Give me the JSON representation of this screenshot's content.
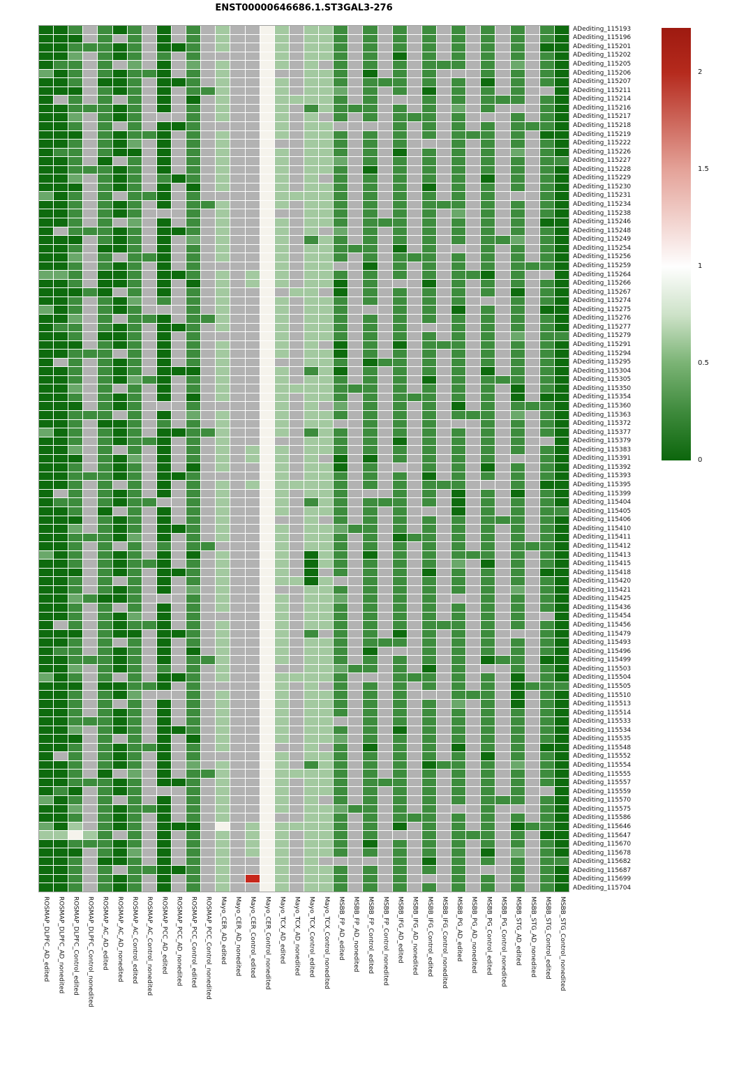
{
  "chart_data": {
    "type": "heatmap",
    "title": "ENST00000646686.1.ST3GAL3-276",
    "legend_position": "right",
    "rows": [
      "ADediting_115193",
      "ADediting_115196",
      "ADediting_115201",
      "ADediting_115202",
      "ADediting_115205",
      "ADediting_115206",
      "ADediting_115207",
      "ADediting_115211",
      "ADediting_115214",
      "ADediting_115216",
      "ADediting_115217",
      "ADediting_115218",
      "ADediting_115219",
      "ADediting_115222",
      "ADediting_115226",
      "ADediting_115227",
      "ADediting_115228",
      "ADediting_115229",
      "ADediting_115230",
      "ADediting_115231",
      "ADediting_115234",
      "ADediting_115238",
      "ADediting_115246",
      "ADediting_115248",
      "ADediting_115249",
      "ADediting_115254",
      "ADediting_115256",
      "ADediting_115259",
      "ADediting_115264",
      "ADediting_115266",
      "ADediting_115267",
      "ADediting_115274",
      "ADediting_115275",
      "ADediting_115276",
      "ADediting_115277",
      "ADediting_115279",
      "ADediting_115291",
      "ADediting_115294",
      "ADediting_115295",
      "ADediting_115304",
      "ADediting_115305",
      "ADediting_115350",
      "ADediting_115354",
      "ADediting_115360",
      "ADediting_115363",
      "ADediting_115372",
      "ADediting_115377",
      "ADediting_115379",
      "ADediting_115383",
      "ADediting_115391",
      "ADediting_115392",
      "ADediting_115393",
      "ADediting_115395",
      "ADediting_115399",
      "ADediting_115404",
      "ADediting_115405",
      "ADediting_115406",
      "ADediting_115410",
      "ADediting_115411",
      "ADediting_115412",
      "ADediting_115413",
      "ADediting_115415",
      "ADediting_115418",
      "ADediting_115420",
      "ADediting_115421",
      "ADediting_115425",
      "ADediting_115436",
      "ADediting_115454",
      "ADediting_115456",
      "ADediting_115479",
      "ADediting_115493",
      "ADediting_115496",
      "ADediting_115499",
      "ADediting_115503",
      "ADediting_115504",
      "ADediting_115505",
      "ADediting_115510",
      "ADediting_115513",
      "ADediting_115514",
      "ADediting_115533",
      "ADediting_115534",
      "ADediting_115535",
      "ADediting_115548",
      "ADediting_115552",
      "ADediting_115554",
      "ADediting_115555",
      "ADediting_115557",
      "ADediting_115559",
      "ADediting_115570",
      "ADediting_115575",
      "ADediting_115586",
      "ADediting_115646",
      "ADediting_115647",
      "ADediting_115670",
      "ADediting_115678",
      "ADediting_115682",
      "ADediting_115687",
      "ADediting_115699",
      "ADediting_115704"
    ],
    "columns": [
      "ROSMAP_DLPFC_AD_edited",
      "ROSMAP_DLPFC_AD_nonedited",
      "ROSMAP_DLPFC_Control_edited",
      "ROSMAP_DLPFC_Control_nonedited",
      "ROSMAP_AC_AD_edited",
      "ROSMAP_AC_AD_nonedited",
      "ROSMAP_AC_Control_edited",
      "ROSMAP_AC_Control_nonedited",
      "ROSMAP_PCC_AD_edited",
      "ROSMAP_PCC_AD_nonedited",
      "ROSMAP_PCC_Control_edited",
      "ROSMAP_PCC_Control_nonedited",
      "Mayo_CER_AD_edited",
      "Mayo_CER_AD_nonedited",
      "Mayo_CER_Control_edited",
      "Mayo_CER_Control_nonedited",
      "Mayo_TCX_AD_edited",
      "Mayo_TCX_AD_nonedited",
      "Mayo_TCX_Control_edited",
      "Mayo_TCX_Control_nonedited",
      "MSBB_FP_AD_edited",
      "MSBB_FP_AD_nonedited",
      "MSBB_FP_Control_edited",
      "MSBB_FP_Control_nonedited",
      "MSBB_IFG_AD_edited",
      "MSBB_IFG_AD_nonedited",
      "MSBB_IFG_Control_edited",
      "MSBB_IFG_Control_nonedited",
      "MSBB_PG_AD_edited",
      "MSBB_PG_AD_nonedited",
      "MSBB_PG_Control_edited",
      "MSBB_PG_Control_nonedited",
      "MSBB_STG_AD_edited",
      "MSBB_STG_AD_nonedited",
      "MSBB_STG_Control_edited",
      "MSBB_STG_Control_nonedited"
    ],
    "value_legend": {
      "d": 0.1,
      "g": 0.35,
      "m": 0.55,
      "l": 0.75,
      "w": 1.0,
      "r": 2.2,
      "n": "NA"
    },
    "colors": {
      "d": "#0e6b0e",
      "g": "#3d8c3d",
      "m": "#6aa86a",
      "l": "#a3c9a0",
      "w": "#f5f3ec",
      "r": "#c7271c",
      "n": "#b2b2b2"
    },
    "grid": {
      "column_base": [
        "d",
        "d",
        "g",
        "n",
        "g",
        "d",
        "g",
        "n",
        "d",
        "n",
        "g",
        "n",
        "l",
        "n",
        "n",
        "w",
        "l",
        "n",
        "l",
        "l",
        "g",
        "n",
        "g",
        "n",
        "g",
        "n",
        "g",
        "n",
        "g",
        "n",
        "g",
        "n",
        "g",
        "n",
        "g",
        "d"
      ],
      "exceptions": [
        {
          "col": 1,
          "m": [
            6,
            20,
            29,
            33,
            47,
            61,
            75,
            89,
            92
          ],
          "l": [
            93
          ]
        },
        {
          "col": 2,
          "n": [
            9,
            24,
            39,
            54,
            69,
            84
          ],
          "g": [
            5,
            15,
            35,
            55,
            72,
            88
          ],
          "m": [
            29
          ],
          "l": [
            93
          ]
        },
        {
          "col": 3,
          "d": [
            2,
            8,
            13,
            19,
            25,
            31,
            37,
            44,
            50,
            57,
            63,
            70,
            76,
            82,
            88,
            95
          ],
          "m": [
            4,
            11,
            18,
            27,
            34,
            42,
            49,
            58,
            66,
            74,
            81,
            90
          ],
          "l": [
            92
          ],
          "w": [
            93
          ]
        },
        {
          "col": 4,
          "g": [
            3,
            10,
            17,
            24,
            31,
            38,
            45,
            52,
            59,
            66,
            73,
            80,
            87,
            94
          ],
          "l": [
            93
          ]
        },
        {
          "col": 5,
          "d": [
            7,
            16,
            26,
            29,
            30,
            31,
            36,
            46,
            56,
            66,
            76,
            86,
            96
          ]
        },
        {
          "col": 6,
          "n": [
            2,
            5,
            9,
            12,
            16,
            20,
            23,
            27,
            31,
            34,
            38,
            42,
            45,
            49,
            53,
            56,
            60,
            64,
            67,
            71,
            75,
            78,
            82,
            86,
            89,
            93,
            97
          ]
        },
        {
          "col": 7,
          "m": [
            5,
            14,
            23,
            32,
            41,
            50,
            59,
            68,
            77,
            86,
            95
          ],
          "d": [
            15,
            70
          ]
        },
        {
          "col": 8,
          "g": [
            6,
            13,
            20,
            27,
            34,
            41,
            48,
            55,
            62,
            69,
            76,
            83,
            90,
            97
          ]
        },
        {
          "col": 9,
          "n": [
            11,
            22,
            33,
            44,
            55,
            66,
            77,
            88
          ],
          "g": [
            4,
            18,
            32,
            46,
            60,
            74
          ]
        },
        {
          "col": 10,
          "d": [
            3,
            7,
            12,
            18,
            24,
            29,
            35,
            40,
            47,
            52,
            58,
            63,
            70,
            75,
            81,
            87,
            92,
            97
          ]
        },
        {
          "col": 11,
          "d": [
            9,
            19,
            30,
            40,
            43,
            51,
            61,
            72,
            82,
            92
          ],
          "m": [
            5,
            25,
            45,
            65,
            85
          ]
        },
        {
          "col": 12,
          "g": [
            8,
            21,
            34,
            47,
            60,
            73,
            86
          ]
        },
        {
          "col": 13,
          "n": [
            4,
            12,
            20,
            28,
            36,
            44,
            52,
            60,
            68,
            76,
            84
          ],
          "w": [
            92
          ]
        },
        {
          "col": 15,
          "l": [
            29,
            30,
            49,
            50,
            53,
            92,
            93,
            94,
            95
          ],
          "r": [
            98
          ]
        },
        {
          "col": 17,
          "n": [
            6,
            14,
            22,
            31,
            39,
            48,
            57,
            65,
            74,
            83,
            91
          ]
        },
        {
          "col": 18,
          "l": [
            9,
            20,
            31,
            42,
            53,
            64,
            75,
            86,
            92
          ]
        },
        {
          "col": 19,
          "g": [
            10,
            25,
            40,
            47,
            55,
            70,
            85
          ],
          "d": [
            61,
            62,
            63,
            64
          ]
        },
        {
          "col": 20,
          "n": [
            5,
            11,
            18,
            24,
            31,
            37,
            44,
            50,
            57,
            63,
            70,
            76,
            83,
            89,
            96
          ]
        },
        {
          "col": 21,
          "d": [
            30,
            31,
            37,
            38,
            40,
            50,
            51
          ],
          "m": [
            8,
            16,
            24,
            44,
            58,
            66,
            74,
            82,
            90
          ],
          "n": [
            12,
            28,
            46,
            64,
            80,
            96
          ]
        },
        {
          "col": 22,
          "g": [
            10,
            26,
            42,
            58,
            74,
            90
          ]
        },
        {
          "col": 23,
          "d": [
            6,
            17,
            28,
            39,
            50,
            61,
            72,
            83,
            94
          ],
          "n": [
            12,
            33,
            54,
            75,
            96
          ]
        },
        {
          "col": 24,
          "g": [
            7,
            23,
            39,
            55,
            71,
            87
          ]
        },
        {
          "col": 25,
          "d": [
            4,
            15,
            26,
            37,
            48,
            59,
            70,
            81,
            92
          ],
          "n": [
            9,
            30,
            51,
            72,
            93
          ]
        },
        {
          "col": 26,
          "g": [
            11,
            27,
            43,
            59,
            75,
            91
          ]
        },
        {
          "col": 27,
          "d": [
            8,
            19,
            30,
            41,
            52,
            63,
            74,
            85,
            96
          ],
          "n": [
            14,
            35,
            56,
            77,
            98
          ]
        },
        {
          "col": 28,
          "g": [
            5,
            21,
            37,
            53,
            69,
            85
          ]
        },
        {
          "col": 29,
          "d": [
            33,
            44,
            54,
            55,
            56,
            83
          ],
          "m": [
            10,
            22,
            62,
            78
          ],
          "n": [
            6,
            26,
            46,
            66,
            90
          ]
        },
        {
          "col": 30,
          "g": [
            13,
            29,
            45,
            61,
            77,
            93
          ]
        },
        {
          "col": 31,
          "d": [
            7,
            18,
            29,
            40,
            51,
            62,
            73,
            84,
            95
          ],
          "n": [
            11,
            32,
            53,
            74,
            97
          ]
        },
        {
          "col": 32,
          "g": [
            9,
            25,
            41,
            57,
            73,
            89
          ]
        },
        {
          "col": 33,
          "d": [
            31,
            42,
            43,
            54,
            75,
            76,
            77,
            78,
            92
          ],
          "m": [
            5,
            15,
            25,
            36,
            45,
            65,
            85,
            95
          ],
          "n": [
            10,
            20,
            50,
            70,
            90
          ]
        },
        {
          "col": 34,
          "g": [
            12,
            28,
            44,
            60,
            76,
            92
          ]
        },
        {
          "col": 35,
          "d": [
            3,
            13,
            23,
            33,
            43,
            53,
            63,
            73,
            83,
            93
          ],
          "n": [
            8,
            29,
            48,
            68,
            88
          ]
        },
        {
          "col": 36,
          "g": [
            16,
            36,
            56,
            76,
            96
          ]
        }
      ]
    }
  },
  "colorbar": {
    "vmax": 2.23,
    "vmin": 0,
    "ticks": [
      {
        "v": 2,
        "label": "2"
      },
      {
        "v": 1.5,
        "label": "1.5"
      },
      {
        "v": 1,
        "label": "1"
      },
      {
        "v": 0.5,
        "label": "0.5"
      },
      {
        "v": 0,
        "label": "0"
      }
    ],
    "gradient_stops": [
      {
        "v": 2.23,
        "color": "#9e1a10"
      },
      {
        "v": 2.0,
        "color": "#b52a1d"
      },
      {
        "v": 1.5,
        "color": "#e4a298"
      },
      {
        "v": 1.0,
        "color": "#fefefe"
      },
      {
        "v": 0.75,
        "color": "#cde2c8"
      },
      {
        "v": 0.5,
        "color": "#7ab374"
      },
      {
        "v": 0.25,
        "color": "#3e8a3c"
      },
      {
        "v": 0,
        "color": "#0c660c"
      }
    ]
  }
}
